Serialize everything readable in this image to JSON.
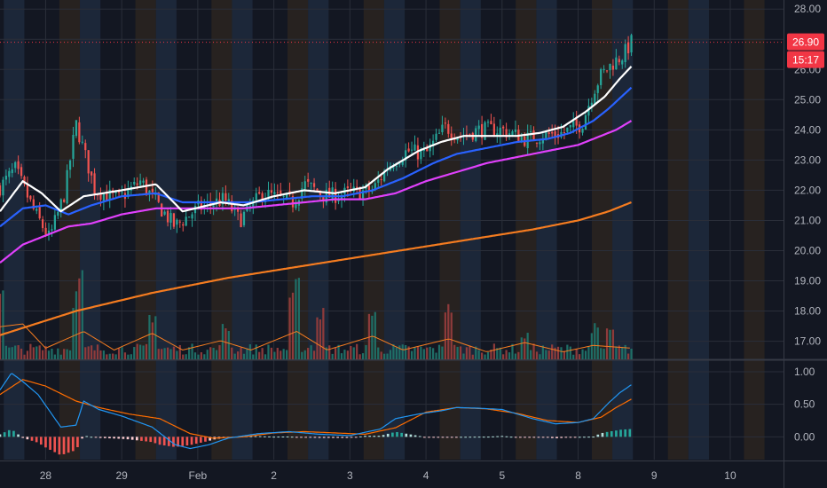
{
  "colors": {
    "background": "#131722",
    "grid": "#2a2e39",
    "up": "#26a69a",
    "down": "#ef5350",
    "up_volume": "#1f6e66",
    "down_volume": "#8e3b3b",
    "band_premarket": "#1f2a3d",
    "band_postmarket": "#2b2520",
    "ema_fast": "#ffffff",
    "ema_mid": "#2962ff",
    "ema_slow": "#e040fb",
    "ema_long": "#f57c20",
    "volume_ma": "#f57c20",
    "macd_line": "#2196f3",
    "signal_line": "#ff6d00",
    "last_price_label": "#f23645",
    "axis_text": "#b2b5be"
  },
  "chart_data": [
    {
      "type": "candlestick",
      "id": "price",
      "ylim": [
        16.4,
        28.3
      ],
      "y_ticks": [
        "17.00",
        "18.00",
        "19.00",
        "20.00",
        "21.00",
        "22.00",
        "23.00",
        "24.00",
        "25.00",
        "26.00",
        "27.00",
        "28.00"
      ],
      "x_ticks": [
        {
          "label": "28",
          "x": 0.6
        },
        {
          "label": "29",
          "x": 1.6
        },
        {
          "label": "Feb",
          "x": 2.6
        },
        {
          "label": "2",
          "x": 3.6
        },
        {
          "label": "3",
          "x": 4.6
        },
        {
          "label": "4",
          "x": 5.6
        },
        {
          "label": "5",
          "x": 6.6
        },
        {
          "label": "8",
          "x": 7.6
        },
        {
          "label": "9",
          "x": 8.6
        },
        {
          "label": "10",
          "x": 9.6
        }
      ],
      "xlim": [
        0,
        10.3
      ],
      "last_price": "26.90",
      "countdown": "15:17",
      "candle_count": 208,
      "anchors": {
        "x": [
          0,
          0.2,
          0.45,
          0.65,
          0.85,
          1.0,
          1.25,
          1.55,
          1.85,
          2.05,
          2.3,
          2.6,
          2.95,
          3.15,
          3.45,
          3.85,
          4.0,
          4.3,
          4.6,
          4.9,
          5.1,
          5.35,
          5.6,
          5.85,
          6.05,
          6.3,
          6.6,
          6.9,
          7.1,
          7.4,
          7.65,
          7.8,
          7.9,
          8.05,
          8.2,
          8.3
        ],
        "close": [
          22.1,
          22.7,
          21.3,
          20.4,
          21.9,
          24.2,
          22.0,
          21.7,
          22.3,
          21.6,
          20.8,
          21.4,
          21.7,
          21.0,
          21.9,
          21.6,
          22.2,
          21.8,
          21.9,
          22.0,
          22.8,
          23.3,
          23.2,
          24.1,
          23.8,
          24.0,
          24.0,
          23.7,
          23.8,
          23.9,
          24.2,
          25.3,
          25.8,
          26.2,
          26.5,
          26.9
        ]
      },
      "ema_fast": {
        "x": [
          0.0,
          0.3,
          0.55,
          0.8,
          1.1,
          1.6,
          2.05,
          2.4,
          2.9,
          3.2,
          3.6,
          4.0,
          4.4,
          4.8,
          5.1,
          5.5,
          5.8,
          6.1,
          6.5,
          6.8,
          7.1,
          7.4,
          7.7,
          7.95,
          8.15,
          8.3
        ],
        "y": [
          21.3,
          22.3,
          21.9,
          21.3,
          21.8,
          22.0,
          22.2,
          21.3,
          21.6,
          21.5,
          21.8,
          22.0,
          21.9,
          22.1,
          22.7,
          23.3,
          23.6,
          23.8,
          23.8,
          23.8,
          23.9,
          24.1,
          24.6,
          25.1,
          25.7,
          26.1
        ]
      },
      "ema_mid": {
        "x": [
          0.0,
          0.3,
          0.6,
          0.9,
          1.2,
          1.6,
          2.05,
          2.4,
          2.9,
          3.3,
          3.7,
          4.1,
          4.5,
          4.9,
          5.3,
          5.7,
          6.0,
          6.4,
          6.8,
          7.2,
          7.5,
          7.8,
          8.0,
          8.3
        ],
        "y": [
          20.8,
          21.4,
          21.5,
          21.2,
          21.5,
          21.8,
          21.9,
          21.6,
          21.6,
          21.6,
          21.7,
          21.8,
          21.8,
          22.0,
          22.4,
          22.9,
          23.2,
          23.4,
          23.6,
          23.7,
          23.9,
          24.3,
          24.7,
          25.4
        ]
      },
      "ema_slow": {
        "x": [
          0.0,
          0.3,
          0.6,
          0.9,
          1.2,
          1.6,
          2.05,
          2.4,
          2.8,
          3.2,
          3.6,
          4.0,
          4.4,
          4.8,
          5.2,
          5.6,
          6.0,
          6.4,
          6.8,
          7.2,
          7.6,
          7.9,
          8.1,
          8.3
        ],
        "y": [
          19.6,
          20.2,
          20.5,
          20.8,
          20.9,
          21.2,
          21.4,
          21.4,
          21.4,
          21.4,
          21.5,
          21.6,
          21.7,
          21.7,
          21.9,
          22.3,
          22.6,
          22.9,
          23.1,
          23.3,
          23.5,
          23.8,
          24.0,
          24.3
        ]
      },
      "ema_long": {
        "x": [
          0.0,
          1.0,
          2.0,
          3.0,
          4.0,
          5.0,
          6.0,
          7.0,
          7.6,
          8.0,
          8.3
        ],
        "y": [
          17.2,
          18.0,
          18.6,
          19.1,
          19.5,
          19.9,
          20.3,
          20.7,
          21.0,
          21.3,
          21.6
        ]
      }
    },
    {
      "type": "bar",
      "id": "volume",
      "note_levels": [
        0.15,
        0.35,
        0.6,
        0.8,
        1.0
      ],
      "spikes": [
        {
          "x": 0.02,
          "v": 0.9
        },
        {
          "x": 1.0,
          "v": 0.65
        },
        {
          "x": 1.04,
          "v": 1.0
        },
        {
          "x": 2.0,
          "v": 0.55
        },
        {
          "x": 2.95,
          "v": 0.4
        },
        {
          "x": 3.85,
          "v": 0.7
        },
        {
          "x": 3.9,
          "v": 1.0
        },
        {
          "x": 4.2,
          "v": 0.6
        },
        {
          "x": 4.9,
          "v": 0.55
        },
        {
          "x": 5.9,
          "v": 0.62
        },
        {
          "x": 6.9,
          "v": 0.3
        },
        {
          "x": 7.8,
          "v": 0.4
        },
        {
          "x": 8.0,
          "v": 0.35
        }
      ],
      "ma": {
        "x": [
          0.0,
          0.3,
          0.6,
          1.1,
          1.5,
          2.0,
          2.4,
          2.9,
          3.3,
          3.9,
          4.3,
          4.9,
          5.3,
          5.9,
          6.4,
          6.9,
          7.4,
          7.8,
          8.3
        ],
        "y": [
          0.35,
          0.38,
          0.12,
          0.3,
          0.1,
          0.28,
          0.1,
          0.2,
          0.1,
          0.3,
          0.1,
          0.25,
          0.1,
          0.22,
          0.08,
          0.18,
          0.08,
          0.15,
          0.12
        ]
      }
    },
    {
      "type": "macd",
      "id": "macd",
      "ylim": [
        -0.35,
        1.15
      ],
      "y_ticks": [
        "1.00",
        "0.50",
        "0.00"
      ],
      "macd": {
        "x": [
          0.0,
          0.15,
          0.3,
          0.5,
          0.8,
          1.0,
          1.1,
          1.3,
          1.6,
          2.0,
          2.3,
          2.5,
          2.75,
          3.0,
          3.4,
          3.8,
          4.2,
          4.6,
          5.0,
          5.2,
          5.5,
          5.8,
          6.0,
          6.3,
          6.6,
          6.8,
          7.0,
          7.3,
          7.6,
          7.8,
          8.0,
          8.15,
          8.3
        ],
        "y": [
          0.72,
          0.98,
          0.85,
          0.65,
          0.15,
          0.18,
          0.55,
          0.42,
          0.32,
          0.15,
          -0.12,
          -0.18,
          -0.12,
          -0.02,
          0.05,
          0.08,
          0.04,
          0.02,
          0.12,
          0.28,
          0.35,
          0.4,
          0.45,
          0.44,
          0.42,
          0.35,
          0.28,
          0.2,
          0.22,
          0.28,
          0.52,
          0.68,
          0.8
        ]
      },
      "signal": {
        "x": [
          0.0,
          0.3,
          0.6,
          1.0,
          1.3,
          1.7,
          2.1,
          2.5,
          2.8,
          3.2,
          3.6,
          4.0,
          4.4,
          4.8,
          5.2,
          5.6,
          6.0,
          6.4,
          6.8,
          7.2,
          7.6,
          7.9,
          8.1,
          8.3
        ],
        "y": [
          0.65,
          0.88,
          0.78,
          0.55,
          0.45,
          0.35,
          0.28,
          0.05,
          -0.02,
          0.0,
          0.06,
          0.08,
          0.06,
          0.04,
          0.14,
          0.38,
          0.45,
          0.43,
          0.36,
          0.25,
          0.22,
          0.3,
          0.45,
          0.58
        ]
      }
    }
  ]
}
